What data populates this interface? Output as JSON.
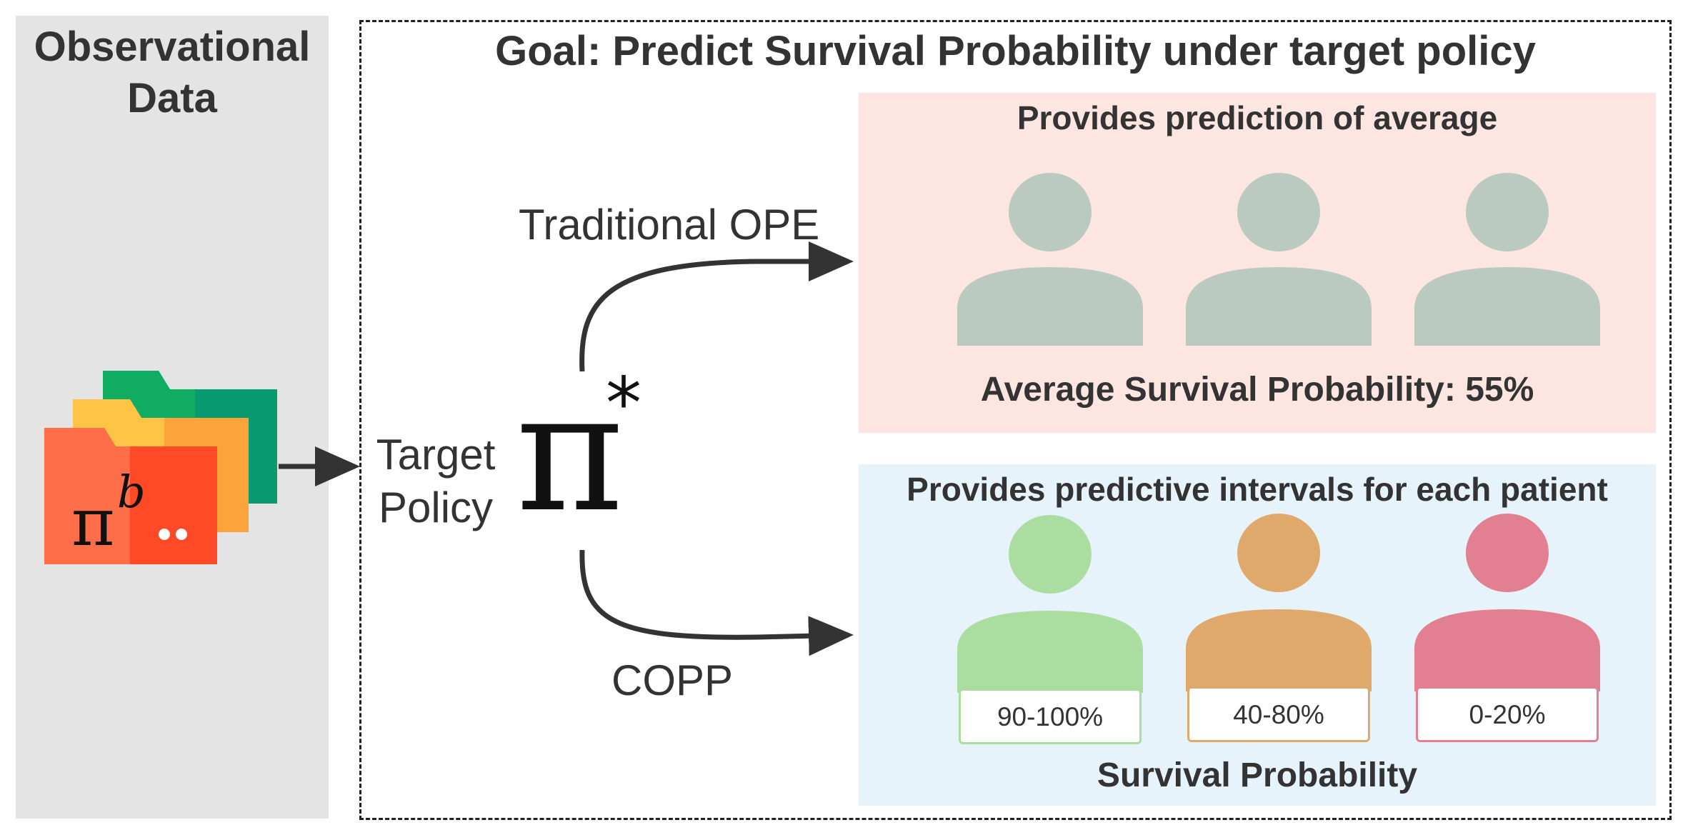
{
  "observational": {
    "title_line1": "Observational",
    "title_line2": "Data",
    "behavior_policy_symbol": "π",
    "behavior_policy_superscript": "b"
  },
  "goal": {
    "title": "Goal: Predict Survival Probability under target policy"
  },
  "target_policy": {
    "label_line1": "Target",
    "label_line2": "Policy",
    "symbol": "π",
    "superscript": "*"
  },
  "methods": {
    "traditional": "Traditional OPE",
    "copp": "COPP"
  },
  "ope_panel": {
    "heading": "Provides prediction of average",
    "footer": "Average Survival Probability: 55%",
    "person_color": "#bbcac0",
    "background": "#fde6e2"
  },
  "copp_panel": {
    "heading": "Provides predictive intervals for each patient",
    "footer": "Survival Probability",
    "background": "#e7f3fb",
    "patients": [
      {
        "interval": "90-100%",
        "color": "#acdda0"
      },
      {
        "interval": "40-80%",
        "color": "#dfa96b"
      },
      {
        "interval": "0-20%",
        "color": "#e27f90"
      }
    ]
  }
}
